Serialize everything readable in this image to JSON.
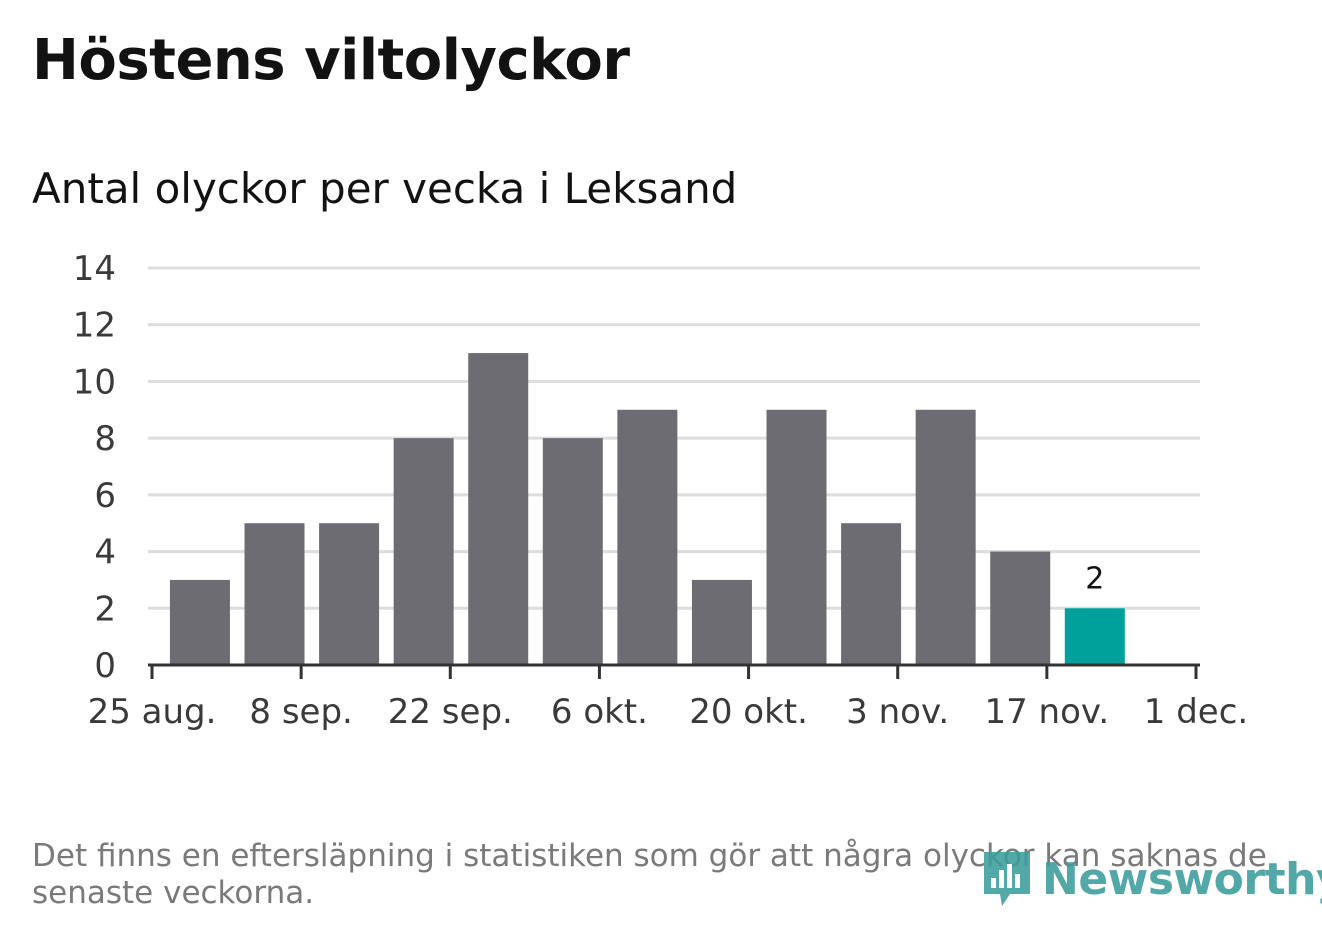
{
  "header": {
    "title": "Höstens viltolyckor",
    "subtitle": "Antal olyckor per vecka i Leksand"
  },
  "footer": {
    "note": "Det finns en eftersläpning i statistiken som gör att några olyckor kan saknas de senaste veckorna.",
    "brand": "Newsworthy",
    "brand_icon": "newsworthy-logo-icon"
  },
  "colors": {
    "bar": "#6d6c72",
    "highlight": "#00a19a",
    "grid": "#dddddd",
    "axis": "#333333"
  },
  "chart_data": {
    "type": "bar",
    "title": "Antal olyckor per vecka i Leksand",
    "xlabel": "",
    "ylabel": "",
    "ylim": [
      0,
      14
    ],
    "yticks": [
      0,
      2,
      4,
      6,
      8,
      10,
      12,
      14
    ],
    "grid": true,
    "xaxis": {
      "domain": [
        "2019-08-25",
        "2019-12-01"
      ],
      "ticks": [
        {
          "date": "2019-08-25",
          "label": "25 aug."
        },
        {
          "date": "2019-09-08",
          "label": "8 sep."
        },
        {
          "date": "2019-09-22",
          "label": "22 sep."
        },
        {
          "date": "2019-10-06",
          "label": "6 okt."
        },
        {
          "date": "2019-10-20",
          "label": "20 okt."
        },
        {
          "date": "2019-11-03",
          "label": "3 nov."
        },
        {
          "date": "2019-11-17",
          "label": "17 nov."
        },
        {
          "date": "2019-12-01",
          "label": "1 dec."
        }
      ]
    },
    "bars": [
      {
        "week_start": "2019-08-26",
        "value": 3
      },
      {
        "week_start": "2019-09-02",
        "value": 5
      },
      {
        "week_start": "2019-09-09",
        "value": 5
      },
      {
        "week_start": "2019-09-16",
        "value": 8
      },
      {
        "week_start": "2019-09-23",
        "value": 11
      },
      {
        "week_start": "2019-09-30",
        "value": 8
      },
      {
        "week_start": "2019-10-07",
        "value": 9
      },
      {
        "week_start": "2019-10-14",
        "value": 3
      },
      {
        "week_start": "2019-10-21",
        "value": 9
      },
      {
        "week_start": "2019-10-28",
        "value": 5
      },
      {
        "week_start": "2019-11-04",
        "value": 9
      },
      {
        "week_start": "2019-11-11",
        "value": 4
      },
      {
        "week_start": "2019-11-18",
        "value": 2,
        "highlight": true,
        "label": "2"
      }
    ]
  }
}
